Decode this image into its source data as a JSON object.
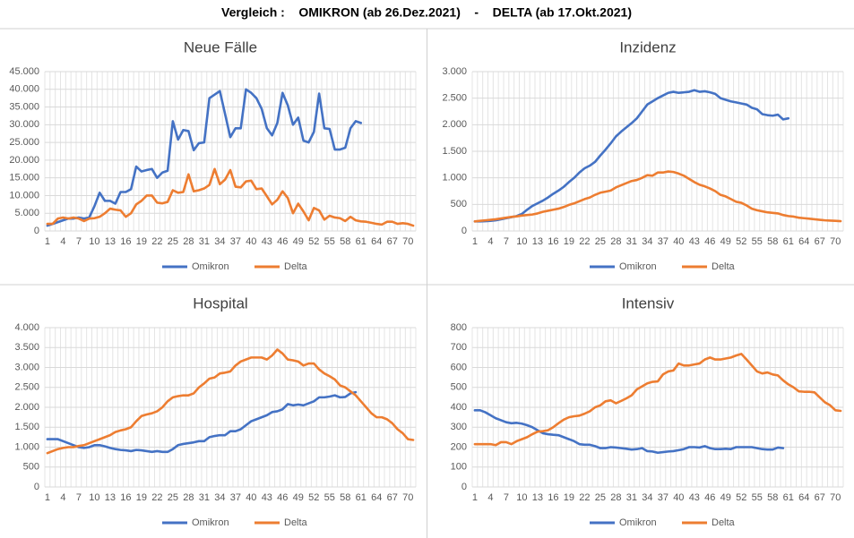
{
  "title": "Vergleich :    OMIKRON (ab 26.Dez.2021)    -    DELTA (ab 17.Okt.2021)",
  "chart_data": [
    {
      "type": "line",
      "title": "Neue Fälle",
      "categories": [
        1,
        null,
        null,
        4,
        null,
        null,
        7,
        null,
        null,
        10,
        null,
        null,
        13,
        null,
        null,
        16,
        null,
        null,
        19,
        null,
        null,
        22,
        null,
        null,
        25,
        null,
        null,
        28,
        null,
        null,
        31,
        null,
        null,
        34,
        null,
        null,
        37,
        null,
        null,
        40,
        null,
        null,
        43,
        null,
        null,
        46,
        null,
        null,
        49,
        null,
        null,
        52,
        null,
        null,
        55,
        null,
        null,
        58,
        null,
        null,
        61,
        null,
        null,
        64,
        null,
        null,
        67,
        null,
        null,
        70,
        null
      ],
      "ylim": [
        0,
        45000
      ],
      "yticks": [
        0,
        {
          "value": 5000,
          "label": "5.000"
        },
        {
          "value": 10000,
          "label": "10.000"
        },
        {
          "value": 15000,
          "label": "15.000"
        },
        {
          "value": 20000,
          "label": "20.000"
        },
        {
          "value": 25000,
          "label": "25.000"
        },
        {
          "value": 30000,
          "label": "30.000"
        },
        {
          "value": 35000,
          "label": "35.000"
        },
        {
          "value": 40000,
          "label": "40.000"
        },
        {
          "value": 45000,
          "label": "45.000"
        }
      ],
      "grid": true,
      "legend": "bottom",
      "series": [
        {
          "name": "Omikron",
          "color": "#4472c4",
          "values": [
            1500,
            2000,
            2500,
            3000,
            3500,
            3500,
            3800,
            3500,
            3800,
            7000,
            10800,
            8500,
            8500,
            7700,
            11000,
            11000,
            11800,
            18200,
            16800,
            17200,
            17500,
            15000,
            16500,
            17000,
            31000,
            25800,
            28500,
            28200,
            22800,
            24800,
            25000,
            37500,
            38500,
            39500,
            33000,
            26500,
            29000,
            29000,
            40000,
            39000,
            37500,
            34500,
            29000,
            27000,
            30500,
            39000,
            35500,
            30000,
            32000,
            25500,
            25000,
            28000,
            38800,
            29000,
            28800,
            23000,
            23000,
            23500,
            29000,
            31000,
            30500,
            null,
            null,
            null,
            null,
            null,
            null,
            null,
            null,
            null,
            null
          ]
        },
        {
          "name": "Delta",
          "color": "#ed7d31",
          "values": [
            2000,
            2000,
            3500,
            3800,
            3500,
            3800,
            3500,
            2800,
            3500,
            3600,
            4000,
            5000,
            6300,
            6000,
            5800,
            4000,
            5000,
            7500,
            8500,
            10000,
            10000,
            8000,
            7800,
            8200,
            11500,
            10800,
            11000,
            16000,
            11200,
            11500,
            12000,
            13000,
            17500,
            13200,
            14500,
            17200,
            12500,
            12300,
            14000,
            14200,
            11800,
            12000,
            9800,
            7500,
            8800,
            11200,
            9300,
            5000,
            7700,
            5500,
            3000,
            6500,
            5800,
            3200,
            4300,
            3800,
            3600,
            2800,
            4000,
            3000,
            2700,
            2600,
            2300,
            2000,
            1800,
            2600,
            2600,
            2000,
            2200,
            2000,
            1500
          ]
        }
      ]
    },
    {
      "type": "line",
      "title": "Inzidenz",
      "categories": [
        1,
        null,
        null,
        4,
        null,
        null,
        7,
        null,
        null,
        10,
        null,
        null,
        13,
        null,
        null,
        16,
        null,
        null,
        19,
        null,
        null,
        22,
        null,
        null,
        25,
        null,
        null,
        28,
        null,
        null,
        31,
        null,
        null,
        34,
        null,
        null,
        37,
        null,
        null,
        40,
        null,
        null,
        43,
        null,
        null,
        46,
        null,
        null,
        49,
        null,
        null,
        52,
        null,
        null,
        55,
        null,
        null,
        58,
        null,
        null,
        61,
        null,
        null,
        64,
        null,
        null,
        67,
        null,
        null,
        70,
        null
      ],
      "ylim": [
        0,
        3000
      ],
      "yticks": [
        0,
        500,
        {
          "value": 1000,
          "label": "1.000"
        },
        {
          "value": 1500,
          "label": "1.500"
        },
        {
          "value": 2000,
          "label": "2.000"
        },
        {
          "value": 2500,
          "label": "2.500"
        },
        {
          "value": 3000,
          "label": "3.000"
        }
      ],
      "grid": true,
      "legend": "bottom",
      "series": [
        {
          "name": "Omikron",
          "color": "#4472c4",
          "values": [
            180,
            180,
            185,
            190,
            200,
            220,
            240,
            260,
            280,
            320,
            400,
            470,
            520,
            570,
            630,
            700,
            760,
            830,
            920,
            1000,
            1100,
            1180,
            1230,
            1300,
            1420,
            1530,
            1650,
            1780,
            1870,
            1950,
            2030,
            2120,
            2250,
            2380,
            2440,
            2500,
            2550,
            2600,
            2620,
            2600,
            2610,
            2620,
            2650,
            2620,
            2630,
            2610,
            2580,
            2500,
            2470,
            2440,
            2420,
            2400,
            2380,
            2320,
            2290,
            2200,
            2180,
            2170,
            2190,
            2100,
            2120,
            null,
            null,
            null,
            null,
            null,
            null,
            null,
            null,
            null,
            null
          ]
        },
        {
          "name": "Delta",
          "color": "#ed7d31",
          "values": [
            180,
            190,
            200,
            210,
            220,
            235,
            250,
            265,
            275,
            290,
            300,
            310,
            330,
            360,
            380,
            400,
            420,
            450,
            490,
            520,
            560,
            600,
            630,
            680,
            720,
            740,
            760,
            820,
            860,
            900,
            940,
            960,
            1000,
            1050,
            1040,
            1100,
            1100,
            1120,
            1110,
            1080,
            1040,
            980,
            920,
            870,
            840,
            800,
            750,
            680,
            650,
            600,
            550,
            530,
            480,
            420,
            390,
            370,
            350,
            340,
            330,
            300,
            280,
            270,
            250,
            240,
            230,
            220,
            210,
            200,
            195,
            190,
            185
          ]
        }
      ]
    },
    {
      "type": "line",
      "title": "Hospital",
      "categories": [
        1,
        null,
        null,
        4,
        null,
        null,
        7,
        null,
        null,
        10,
        null,
        null,
        13,
        null,
        null,
        16,
        null,
        null,
        19,
        null,
        null,
        22,
        null,
        null,
        25,
        null,
        null,
        28,
        null,
        null,
        31,
        null,
        null,
        34,
        null,
        null,
        37,
        null,
        null,
        40,
        null,
        null,
        43,
        null,
        null,
        46,
        null,
        null,
        49,
        null,
        null,
        52,
        null,
        null,
        55,
        null,
        null,
        58,
        null,
        null,
        61,
        null,
        null,
        64,
        null,
        null,
        67,
        null,
        null,
        70,
        null
      ],
      "ylim": [
        0,
        4000
      ],
      "yticks": [
        0,
        500,
        {
          "value": 1000,
          "label": "1.000"
        },
        {
          "value": 1500,
          "label": "1.500"
        },
        {
          "value": 2000,
          "label": "2.000"
        },
        {
          "value": 2500,
          "label": "2.500"
        },
        {
          "value": 3000,
          "label": "3.000"
        },
        {
          "value": 3500,
          "label": "3.500"
        },
        {
          "value": 4000,
          "label": "4.000"
        }
      ],
      "grid": true,
      "legend": "bottom",
      "series": [
        {
          "name": "Omikron",
          "color": "#4472c4",
          "values": [
            1200,
            1200,
            1200,
            1150,
            1100,
            1050,
            1000,
            980,
            1000,
            1050,
            1050,
            1020,
            980,
            950,
            930,
            920,
            900,
            930,
            920,
            900,
            880,
            900,
            880,
            880,
            950,
            1050,
            1080,
            1100,
            1120,
            1150,
            1150,
            1250,
            1280,
            1300,
            1300,
            1400,
            1400,
            1450,
            1550,
            1650,
            1700,
            1750,
            1800,
            1880,
            1900,
            1950,
            2080,
            2050,
            2070,
            2050,
            2100,
            2150,
            2250,
            2250,
            2270,
            2300,
            2250,
            2260,
            2350,
            2380,
            null,
            null,
            null,
            null,
            null,
            null,
            null,
            null,
            null,
            null,
            null
          ]
        },
        {
          "name": "Delta",
          "color": "#ed7d31",
          "values": [
            850,
            900,
            950,
            980,
            1000,
            1000,
            1030,
            1050,
            1100,
            1150,
            1200,
            1250,
            1300,
            1380,
            1420,
            1450,
            1500,
            1650,
            1780,
            1820,
            1850,
            1900,
            2000,
            2150,
            2250,
            2280,
            2300,
            2300,
            2350,
            2500,
            2600,
            2720,
            2750,
            2850,
            2870,
            2900,
            3050,
            3150,
            3200,
            3250,
            3250,
            3250,
            3200,
            3300,
            3450,
            3350,
            3200,
            3180,
            3150,
            3050,
            3100,
            3100,
            2950,
            2850,
            2780,
            2700,
            2550,
            2500,
            2400,
            2300,
            2150,
            2000,
            1850,
            1750,
            1750,
            1700,
            1600,
            1450,
            1350,
            1200,
            1180
          ]
        }
      ]
    },
    {
      "type": "line",
      "title": "Intensiv",
      "categories": [
        1,
        null,
        null,
        4,
        null,
        null,
        7,
        null,
        null,
        10,
        null,
        null,
        13,
        null,
        null,
        16,
        null,
        null,
        19,
        null,
        null,
        22,
        null,
        null,
        25,
        null,
        null,
        28,
        null,
        null,
        31,
        null,
        null,
        34,
        null,
        null,
        37,
        null,
        null,
        40,
        null,
        null,
        43,
        null,
        null,
        46,
        null,
        null,
        49,
        null,
        null,
        52,
        null,
        null,
        55,
        null,
        null,
        58,
        null,
        null,
        61,
        null,
        null,
        64,
        null,
        null,
        67,
        null,
        null,
        70,
        null
      ],
      "ylim": [
        0,
        800
      ],
      "yticks": [
        0,
        100,
        200,
        300,
        400,
        500,
        600,
        700,
        800
      ],
      "grid": true,
      "legend": "bottom",
      "series": [
        {
          "name": "Omikron",
          "color": "#4472c4",
          "values": [
            385,
            385,
            375,
            360,
            345,
            335,
            325,
            320,
            322,
            318,
            310,
            300,
            285,
            270,
            265,
            262,
            260,
            250,
            240,
            230,
            215,
            212,
            212,
            205,
            195,
            195,
            200,
            198,
            195,
            192,
            188,
            190,
            195,
            180,
            178,
            172,
            175,
            178,
            180,
            185,
            190,
            200,
            200,
            198,
            205,
            195,
            190,
            190,
            192,
            190,
            200,
            200,
            200,
            200,
            195,
            190,
            188,
            188,
            198,
            195,
            null,
            null,
            null,
            null,
            null,
            null,
            null,
            null,
            null,
            null,
            null
          ]
        },
        {
          "name": "Delta",
          "color": "#ed7d31",
          "values": [
            215,
            215,
            215,
            215,
            210,
            225,
            225,
            215,
            230,
            240,
            250,
            265,
            278,
            280,
            285,
            300,
            320,
            338,
            350,
            355,
            358,
            368,
            380,
            400,
            410,
            430,
            435,
            420,
            432,
            445,
            460,
            490,
            505,
            520,
            528,
            530,
            565,
            580,
            585,
            620,
            610,
            610,
            615,
            620,
            640,
            650,
            640,
            640,
            645,
            650,
            660,
            668,
            640,
            610,
            580,
            570,
            575,
            565,
            560,
            535,
            515,
            500,
            480,
            478,
            478,
            475,
            450,
            425,
            410,
            385,
            382
          ]
        }
      ]
    }
  ]
}
